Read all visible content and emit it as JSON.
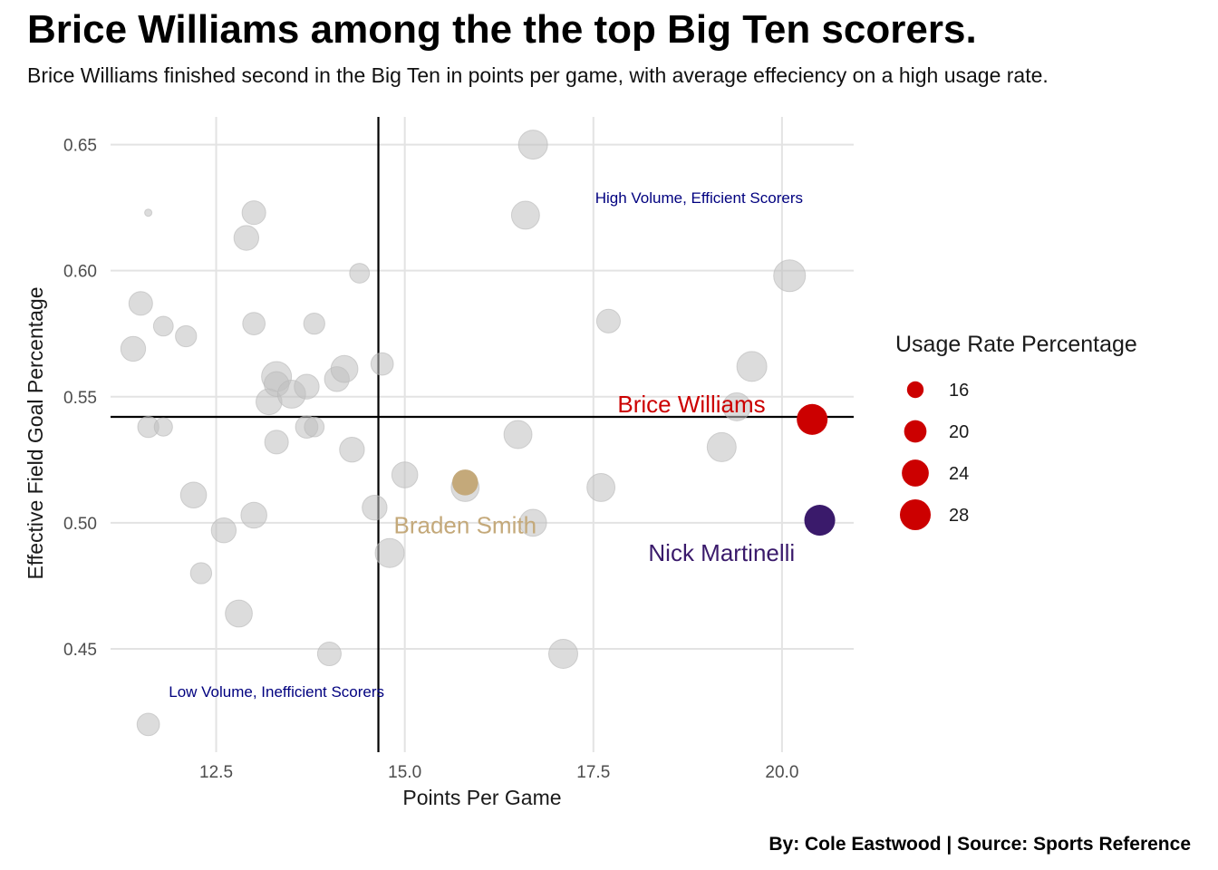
{
  "title": "Brice Williams among the the top Big Ten scorers.",
  "subtitle": "Brice Williams finished second in the Big Ten in points per game, with average effeciency on a high usage rate.",
  "caption": "By: Cole Eastwood | Source: Sports Reference",
  "chart_data": {
    "type": "scatter",
    "xlabel": "Points Per Game",
    "ylabel": "Effective Field Goal Percentage",
    "xlim": [
      11.1,
      20.95
    ],
    "ylim": [
      0.409,
      0.661
    ],
    "x_ticks": [
      12.5,
      15.0,
      17.5,
      20.0
    ],
    "x_tick_labels": [
      "12.5",
      "15.0",
      "17.5",
      "20.0"
    ],
    "y_ticks": [
      0.45,
      0.5,
      0.55,
      0.6,
      0.65
    ],
    "y_tick_labels": [
      "0.45",
      "0.50",
      "0.55",
      "0.60",
      "0.65"
    ],
    "grid": true,
    "reference_lines": {
      "x": 14.65,
      "y": 0.542
    },
    "annotations": [
      {
        "text": "High Volume, Efficient Scorers",
        "x": 18.9,
        "y": 0.629
      },
      {
        "text": "Low Volume, Inefficient Scorers",
        "x": 13.3,
        "y": 0.433
      }
    ],
    "size_legend": {
      "title": "Usage Rate Percentage",
      "values": [
        16,
        20,
        24,
        28
      ],
      "labels": [
        "16",
        "20",
        "24",
        "28"
      ],
      "color": "#cc0000"
    },
    "size_range": [
      12,
      30
    ],
    "background_color": "#c0c0c0",
    "points": [
      {
        "x": 11.6,
        "y": 0.623,
        "usage": 12
      },
      {
        "x": 11.5,
        "y": 0.587,
        "usage": 21
      },
      {
        "x": 11.4,
        "y": 0.569,
        "usage": 22
      },
      {
        "x": 11.8,
        "y": 0.578,
        "usage": 18
      },
      {
        "x": 12.1,
        "y": 0.574,
        "usage": 19
      },
      {
        "x": 11.6,
        "y": 0.538,
        "usage": 19
      },
      {
        "x": 11.8,
        "y": 0.538,
        "usage": 17
      },
      {
        "x": 11.6,
        "y": 0.42,
        "usage": 20
      },
      {
        "x": 12.2,
        "y": 0.511,
        "usage": 23
      },
      {
        "x": 12.6,
        "y": 0.497,
        "usage": 22
      },
      {
        "x": 12.3,
        "y": 0.48,
        "usage": 19
      },
      {
        "x": 12.8,
        "y": 0.464,
        "usage": 24
      },
      {
        "x": 12.9,
        "y": 0.613,
        "usage": 22
      },
      {
        "x": 13.0,
        "y": 0.623,
        "usage": 21
      },
      {
        "x": 13.0,
        "y": 0.579,
        "usage": 20
      },
      {
        "x": 13.0,
        "y": 0.503,
        "usage": 23
      },
      {
        "x": 13.2,
        "y": 0.548,
        "usage": 23
      },
      {
        "x": 13.3,
        "y": 0.558,
        "usage": 27
      },
      {
        "x": 13.3,
        "y": 0.555,
        "usage": 22
      },
      {
        "x": 13.3,
        "y": 0.532,
        "usage": 21
      },
      {
        "x": 13.5,
        "y": 0.551,
        "usage": 25
      },
      {
        "x": 13.7,
        "y": 0.554,
        "usage": 22
      },
      {
        "x": 13.7,
        "y": 0.538,
        "usage": 20
      },
      {
        "x": 13.8,
        "y": 0.579,
        "usage": 19
      },
      {
        "x": 13.8,
        "y": 0.538,
        "usage": 18
      },
      {
        "x": 14.0,
        "y": 0.448,
        "usage": 21
      },
      {
        "x": 14.1,
        "y": 0.557,
        "usage": 22
      },
      {
        "x": 14.2,
        "y": 0.561,
        "usage": 24
      },
      {
        "x": 14.3,
        "y": 0.529,
        "usage": 22
      },
      {
        "x": 14.4,
        "y": 0.599,
        "usage": 18
      },
      {
        "x": 14.6,
        "y": 0.506,
        "usage": 22
      },
      {
        "x": 14.7,
        "y": 0.563,
        "usage": 20
      },
      {
        "x": 14.8,
        "y": 0.488,
        "usage": 26
      },
      {
        "x": 15.0,
        "y": 0.519,
        "usage": 23
      },
      {
        "x": 15.8,
        "y": 0.514,
        "usage": 25
      },
      {
        "x": 16.5,
        "y": 0.535,
        "usage": 25
      },
      {
        "x": 16.6,
        "y": 0.622,
        "usage": 25
      },
      {
        "x": 16.7,
        "y": 0.65,
        "usage": 26
      },
      {
        "x": 16.7,
        "y": 0.5,
        "usage": 24
      },
      {
        "x": 17.1,
        "y": 0.448,
        "usage": 26
      },
      {
        "x": 17.6,
        "y": 0.514,
        "usage": 25
      },
      {
        "x": 17.7,
        "y": 0.58,
        "usage": 21
      },
      {
        "x": 19.2,
        "y": 0.53,
        "usage": 26
      },
      {
        "x": 19.4,
        "y": 0.546,
        "usage": 25
      },
      {
        "x": 19.6,
        "y": 0.562,
        "usage": 27
      },
      {
        "x": 20.1,
        "y": 0.598,
        "usage": 29
      }
    ],
    "highlighted": [
      {
        "name": "Brice Williams",
        "x": 20.4,
        "y": 0.541,
        "usage": 28,
        "color": "#cc0000",
        "label_x": 18.8,
        "label_y": 0.547
      },
      {
        "name": "Braden Smith",
        "x": 15.8,
        "y": 0.516,
        "usage": 23,
        "color": "#c4a97a",
        "label_x": 15.8,
        "label_y": 0.499
      },
      {
        "name": "Nick Martinelli",
        "x": 20.5,
        "y": 0.501,
        "usage": 28,
        "color": "#3a1a6b",
        "label_x": 19.2,
        "label_y": 0.488
      }
    ]
  }
}
